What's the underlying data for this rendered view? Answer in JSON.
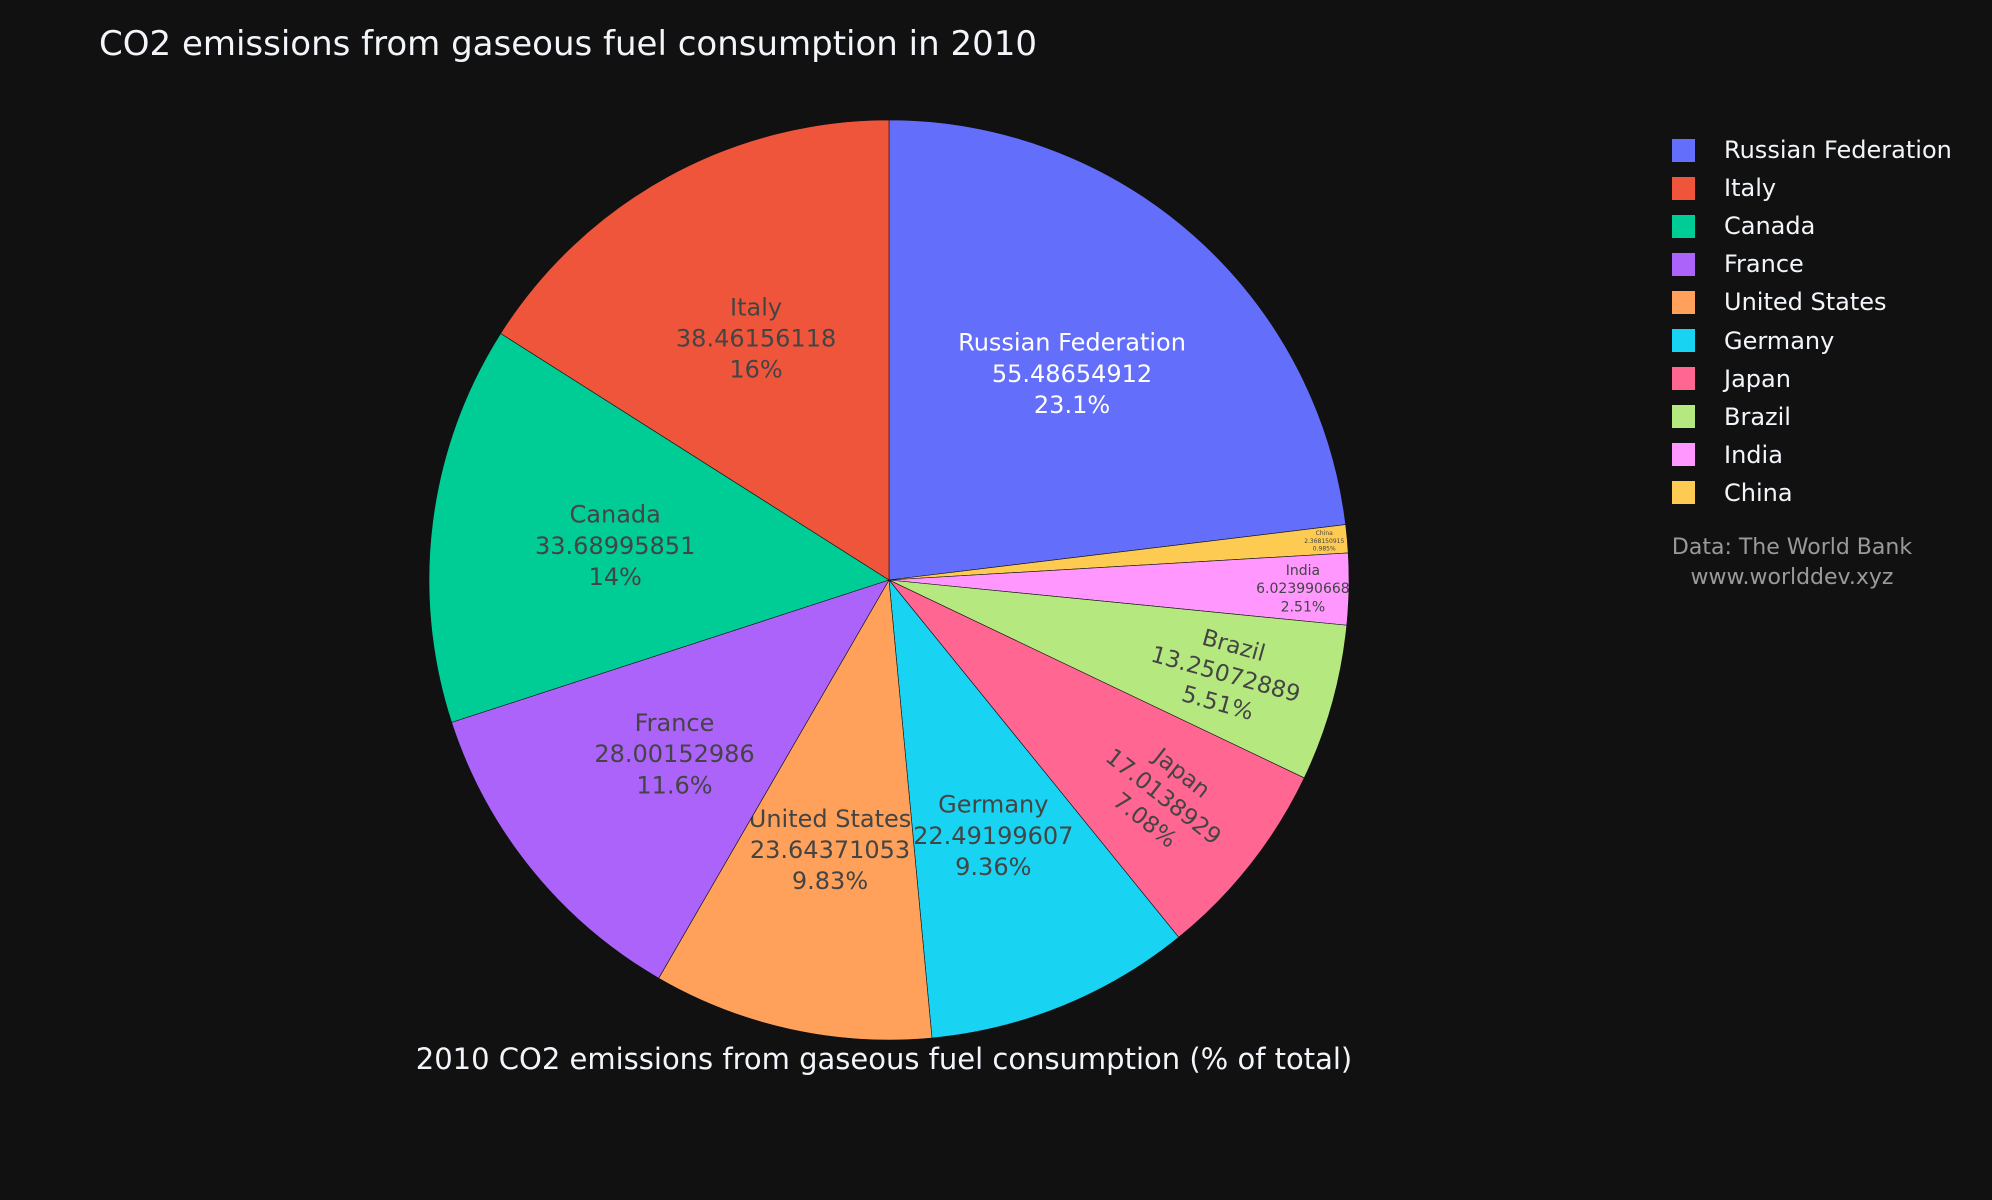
{
  "chart_data": {
    "type": "pie",
    "title": "CO2 emissions from gaseous fuel consumption in 2010",
    "caption": "2010 CO2 emissions from gaseous fuel consumption (% of total)",
    "slices": [
      {
        "label": "Russian Federation",
        "value_text": "55.48654912",
        "percent_text": "23.1%",
        "value": 55.48654912,
        "color": "#636efa"
      },
      {
        "label": "China",
        "value_text": "2.368150915",
        "percent_text": "0.985%",
        "value": 2.368150915,
        "color": "#fecb52"
      },
      {
        "label": "India",
        "value_text": "6.023990668",
        "percent_text": "2.51%",
        "value": 6.023990668,
        "color": "#ff97ff"
      },
      {
        "label": "Brazil",
        "value_text": "13.25072889",
        "percent_text": "5.51%",
        "value": 13.25072889,
        "color": "#b6e880"
      },
      {
        "label": "Japan",
        "value_text": "17.0138929",
        "percent_text": "7.08%",
        "value": 17.0138929,
        "color": "#ff6692"
      },
      {
        "label": "Germany",
        "value_text": "22.49199607",
        "percent_text": "9.36%",
        "value": 22.49199607,
        "color": "#19d3f3"
      },
      {
        "label": "United States",
        "value_text": "23.64371053",
        "percent_text": "9.83%",
        "value": 23.64371053,
        "color": "#ffa15a"
      },
      {
        "label": "France",
        "value_text": "28.00152986",
        "percent_text": "11.6%",
        "value": 28.00152986,
        "color": "#ab63fa"
      },
      {
        "label": "Canada",
        "value_text": "33.68995851",
        "percent_text": "14%",
        "value": 33.68995851,
        "color": "#00cc96"
      },
      {
        "label": "Italy",
        "value_text": "38.46156118",
        "percent_text": "16%",
        "value": 38.46156118,
        "color": "#ef553b"
      }
    ],
    "legend": {
      "placement": "top-right",
      "entries": [
        {
          "label": "Russian Federation",
          "color": "#636efa"
        },
        {
          "label": "Italy",
          "color": "#ef553b"
        },
        {
          "label": "Canada",
          "color": "#00cc96"
        },
        {
          "label": "France",
          "color": "#ab63fa"
        },
        {
          "label": "United States",
          "color": "#ffa15a"
        },
        {
          "label": "Germany",
          "color": "#19d3f3"
        },
        {
          "label": "Japan",
          "color": "#ff6692"
        },
        {
          "label": "Brazil",
          "color": "#b6e880"
        },
        {
          "label": "India",
          "color": "#ff97ff"
        },
        {
          "label": "China",
          "color": "#fecb52"
        }
      ]
    },
    "direction": "clockwise",
    "source_lines": [
      "Data: The World Bank",
      "www.worlddev.xyz"
    ]
  }
}
